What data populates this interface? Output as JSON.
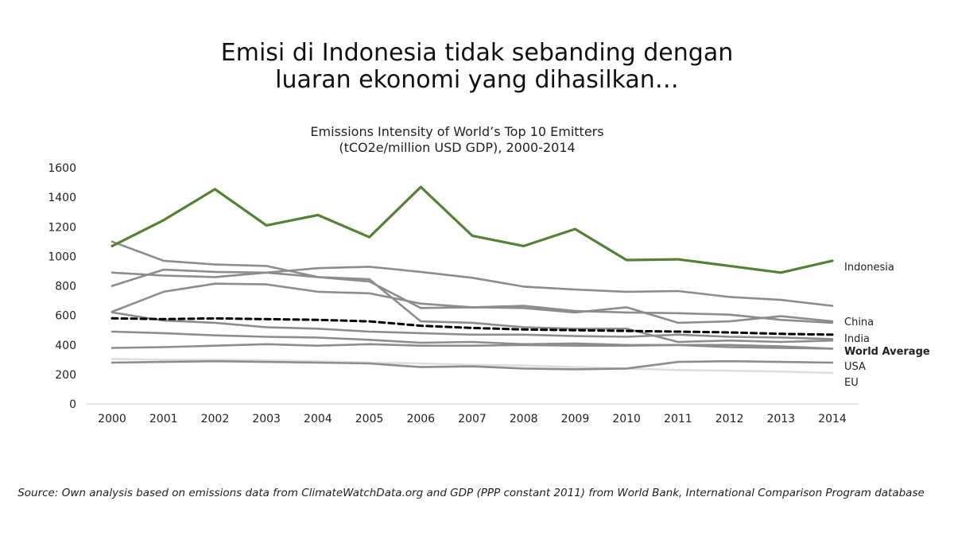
{
  "headline": {
    "line1": "Emisi di Indonesia tidak sebanding dengan",
    "line2": "luaran ekonomi yang dihasilkan…"
  },
  "source": "Source: Own analysis based on emissions data from ClimateWatchData.org and GDP (PPP constant 2011) from World Bank, International Comparison Program database",
  "colors": {
    "indonesia": "#538135",
    "others": "#8c8c8c",
    "eu": "#dedede",
    "world": "#000000"
  },
  "chart_data": {
    "type": "line",
    "title": "Emissions Intensity of World’s Top 10 Emitters",
    "subtitle": "(tCO2e/million USD GDP), 2000-2014",
    "x": [
      "2000",
      "2001",
      "2002",
      "2003",
      "2004",
      "2005",
      "2006",
      "2007",
      "2008",
      "2009",
      "2010",
      "2011",
      "2012",
      "2013",
      "2014"
    ],
    "ylim": [
      0,
      1600
    ],
    "yticks": [
      0,
      200,
      400,
      600,
      800,
      1000,
      1200,
      1400,
      1600
    ],
    "grid": false,
    "series": [
      {
        "name": "Indonesia",
        "style": "highlight",
        "values": [
          1070,
          1245,
          1455,
          1210,
          1280,
          1130,
          1470,
          1140,
          1070,
          1185,
          975,
          980,
          935,
          890,
          970
        ]
      },
      {
        "name": "China",
        "style": "gray",
        "values": [
          800,
          910,
          895,
          890,
          860,
          845,
          560,
          550,
          520,
          510,
          510,
          420,
          430,
          420,
          430
        ]
      },
      {
        "name": "India",
        "style": "gray",
        "values": [
          625,
          760,
          815,
          810,
          760,
          750,
          680,
          655,
          665,
          630,
          620,
          615,
          605,
          570,
          550
        ]
      },
      {
        "name": "World Average",
        "style": "dashed",
        "values": [
          580,
          575,
          580,
          575,
          570,
          560,
          530,
          515,
          505,
          500,
          495,
          490,
          485,
          475,
          470
        ]
      },
      {
        "name": "USA",
        "style": "gray",
        "values": [
          490,
          480,
          465,
          455,
          450,
          435,
          415,
          420,
          405,
          410,
          400,
          400,
          385,
          380,
          375
        ]
      },
      {
        "name": "EU",
        "style": "light",
        "values": [
          305,
          300,
          300,
          295,
          290,
          280,
          275,
          265,
          260,
          250,
          240,
          230,
          225,
          220,
          210
        ]
      },
      {
        "style": "gray",
        "values": [
          1100,
          970,
          945,
          935,
          860,
          830,
          650,
          655,
          650,
          620,
          655,
          550,
          560,
          595,
          560
        ]
      },
      {
        "style": "gray",
        "values": [
          890,
          870,
          860,
          890,
          920,
          930,
          895,
          855,
          795,
          775,
          760,
          765,
          725,
          705,
          665
        ]
      },
      {
        "style": "gray",
        "values": [
          620,
          565,
          550,
          520,
          510,
          490,
          480,
          470,
          470,
          460,
          455,
          470,
          455,
          450,
          440
        ]
      },
      {
        "style": "gray",
        "values": [
          380,
          385,
          395,
          405,
          395,
          405,
          395,
          395,
          400,
          395,
          395,
          400,
          400,
          390,
          375
        ]
      },
      {
        "style": "gray",
        "values": [
          280,
          285,
          290,
          285,
          280,
          275,
          250,
          255,
          240,
          235,
          240,
          285,
          290,
          285,
          280
        ]
      }
    ]
  }
}
